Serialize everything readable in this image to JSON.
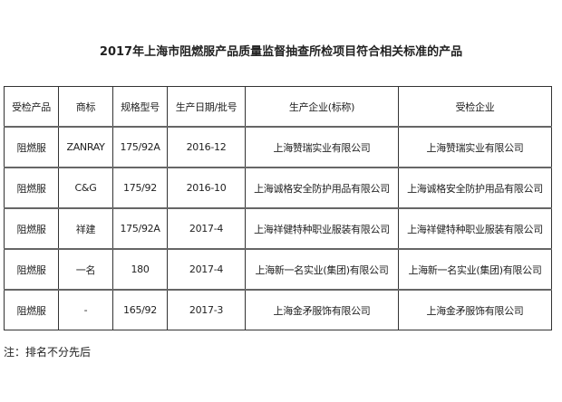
{
  "title": "2017年上海市阻燃服产品质量监督抽查所检项目符合相关标准的产品",
  "table": {
    "headers": [
      "受检产品",
      "商标",
      "规格型号",
      "生产日期/批号",
      "生产企业(标称)",
      "受检企业"
    ],
    "rows": [
      [
        "阻燃服",
        "ZANRAY",
        "175/92A",
        "2016-12",
        "上海赞瑞实业有限公司",
        "上海赞瑞实业有限公司"
      ],
      [
        "阻燃服",
        "C&G",
        "175/92",
        "2016-10",
        "上海诚格安全防护用品有限公司",
        "上海诚格安全防护用品有限公司"
      ],
      [
        "阻燃服",
        "祥建",
        "175/92A",
        "2017-4",
        "上海祥健特种职业服装有限公司",
        "上海祥健特种职业服装有限公司"
      ],
      [
        "阻燃服",
        "一名",
        "180",
        "2017-4",
        "上海新一名实业(集团)有限公司",
        "上海新一名实业(集团)有限公司"
      ],
      [
        "阻燃服",
        "-",
        "165/92",
        "2017-3",
        "上海金矛服饰有限公司",
        "上海金矛服饰有限公司"
      ]
    ]
  },
  "note": "注：排名不分先后"
}
